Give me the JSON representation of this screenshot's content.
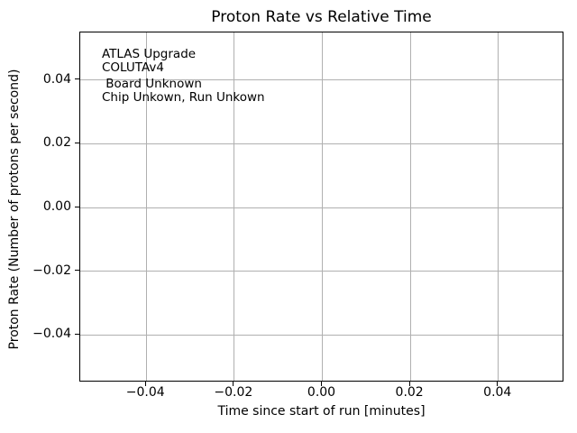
{
  "chart_data": {
    "type": "scatter",
    "title": "Proton Rate vs Relative Time",
    "xlabel": "Time since start of run [minutes]",
    "ylabel": "Proton Rate (Number of protons per second)",
    "series": [],
    "x": [],
    "y": [],
    "xlim": [
      -0.055,
      0.055
    ],
    "ylim": [
      -0.055,
      0.055
    ],
    "xticks": [
      -0.04,
      -0.02,
      0.0,
      0.02,
      0.04
    ],
    "yticks": [
      0.04,
      0.02,
      0.0,
      -0.02,
      -0.04
    ],
    "xtick_labels": [
      "−0.04",
      "−0.02",
      "0.00",
      "0.02",
      "0.04"
    ],
    "ytick_labels": [
      "0.04",
      "0.02",
      "0.00",
      "−0.02",
      "−0.04"
    ],
    "grid": true,
    "grid_color": "#b0b0b0",
    "axis_color": "#000000",
    "background_color": "#ffffff",
    "legend": "none",
    "annotations": [
      {
        "lines": [
          "ATLAS Upgrade",
          "COLUTAv4"
        ]
      },
      {
        "lines": [
          " Board Unknown",
          "Chip Unkown, Run Unkown"
        ]
      }
    ]
  }
}
